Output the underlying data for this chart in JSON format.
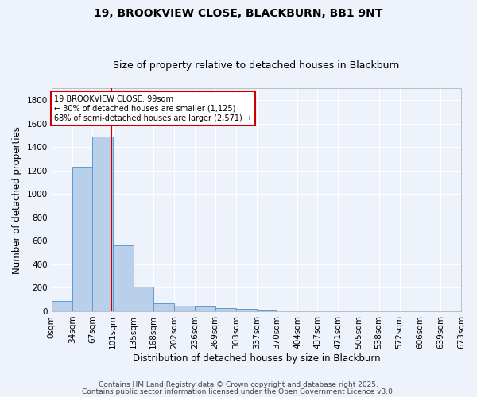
{
  "title1": "19, BROOKVIEW CLOSE, BLACKBURN, BB1 9NT",
  "title2": "Size of property relative to detached houses in Blackburn",
  "xlabel": "Distribution of detached houses by size in Blackburn",
  "ylabel": "Number of detached properties",
  "bin_labels": [
    "0sqm",
    "34sqm",
    "67sqm",
    "101sqm",
    "135sqm",
    "168sqm",
    "202sqm",
    "236sqm",
    "269sqm",
    "303sqm",
    "337sqm",
    "370sqm",
    "404sqm",
    "437sqm",
    "471sqm",
    "505sqm",
    "538sqm",
    "572sqm",
    "606sqm",
    "639sqm",
    "673sqm"
  ],
  "bar_values": [
    90,
    1230,
    1490,
    565,
    210,
    65,
    50,
    40,
    27,
    22,
    8,
    2,
    1,
    0,
    0,
    0,
    0,
    0,
    0,
    0
  ],
  "bar_color": "#b8d0ea",
  "bar_edge_color": "#5b9bd5",
  "property_line_x": 99,
  "annotation_text": "19 BROOKVIEW CLOSE: 99sqm\n← 30% of detached houses are smaller (1,125)\n68% of semi-detached houses are larger (2,571) →",
  "annotation_box_color": "#ffffff",
  "annotation_box_edge": "#cc0000",
  "vline_color": "#cc0000",
  "ylim": [
    0,
    1900
  ],
  "yticks": [
    0,
    200,
    400,
    600,
    800,
    1000,
    1200,
    1400,
    1600,
    1800
  ],
  "background_color": "#eef2fb",
  "grid_color": "#ffffff",
  "footer1": "Contains HM Land Registry data © Crown copyright and database right 2025.",
  "footer2": "Contains public sector information licensed under the Open Government Licence v3.0.",
  "title1_fontsize": 10,
  "title2_fontsize": 9,
  "tick_fontsize": 7.5,
  "label_fontsize": 8.5,
  "footer_fontsize": 6.5
}
